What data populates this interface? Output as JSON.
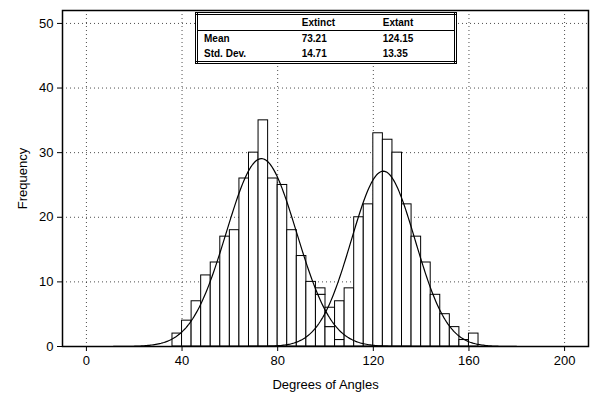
{
  "chart_data": {
    "type": "histogram",
    "x_label": "Degrees of Angles",
    "y_label": "Frequency",
    "xlim": [
      -10,
      210
    ],
    "xticks": [
      0,
      40,
      80,
      120,
      160,
      200
    ],
    "ylim": [
      0,
      52
    ],
    "yticks": [
      0,
      10,
      20,
      30,
      40,
      50
    ],
    "grid": true,
    "series": [
      {
        "name": "Extinct",
        "color": "#ffffff",
        "bins": [
          36,
          40,
          44,
          48,
          52,
          56,
          60,
          64,
          68,
          72,
          76,
          80,
          84,
          88,
          92,
          96,
          100,
          104,
          108
        ],
        "values": [
          2,
          4,
          7,
          11,
          13,
          17,
          18,
          26,
          30,
          35,
          26,
          25,
          18,
          14,
          10,
          8,
          3,
          1
        ]
      },
      {
        "name": "Extant",
        "color": "#ffffff",
        "bins": [
          96,
          100,
          104,
          108,
          112,
          116,
          120,
          124,
          128,
          132,
          136,
          140,
          144,
          148,
          152,
          156,
          160,
          164
        ],
        "values": [
          1,
          3,
          6,
          9,
          20,
          22,
          33,
          32,
          30,
          22,
          17,
          13,
          8,
          5,
          3,
          1,
          2
        ]
      }
    ],
    "stats": {
      "columns": [
        "Extinct",
        "Extant"
      ],
      "rows": [
        {
          "label": "Mean",
          "values": [
            73.21,
            124.15
          ]
        },
        {
          "label": "Std. Dev.",
          "values": [
            14.71,
            13.35
          ]
        }
      ]
    }
  }
}
